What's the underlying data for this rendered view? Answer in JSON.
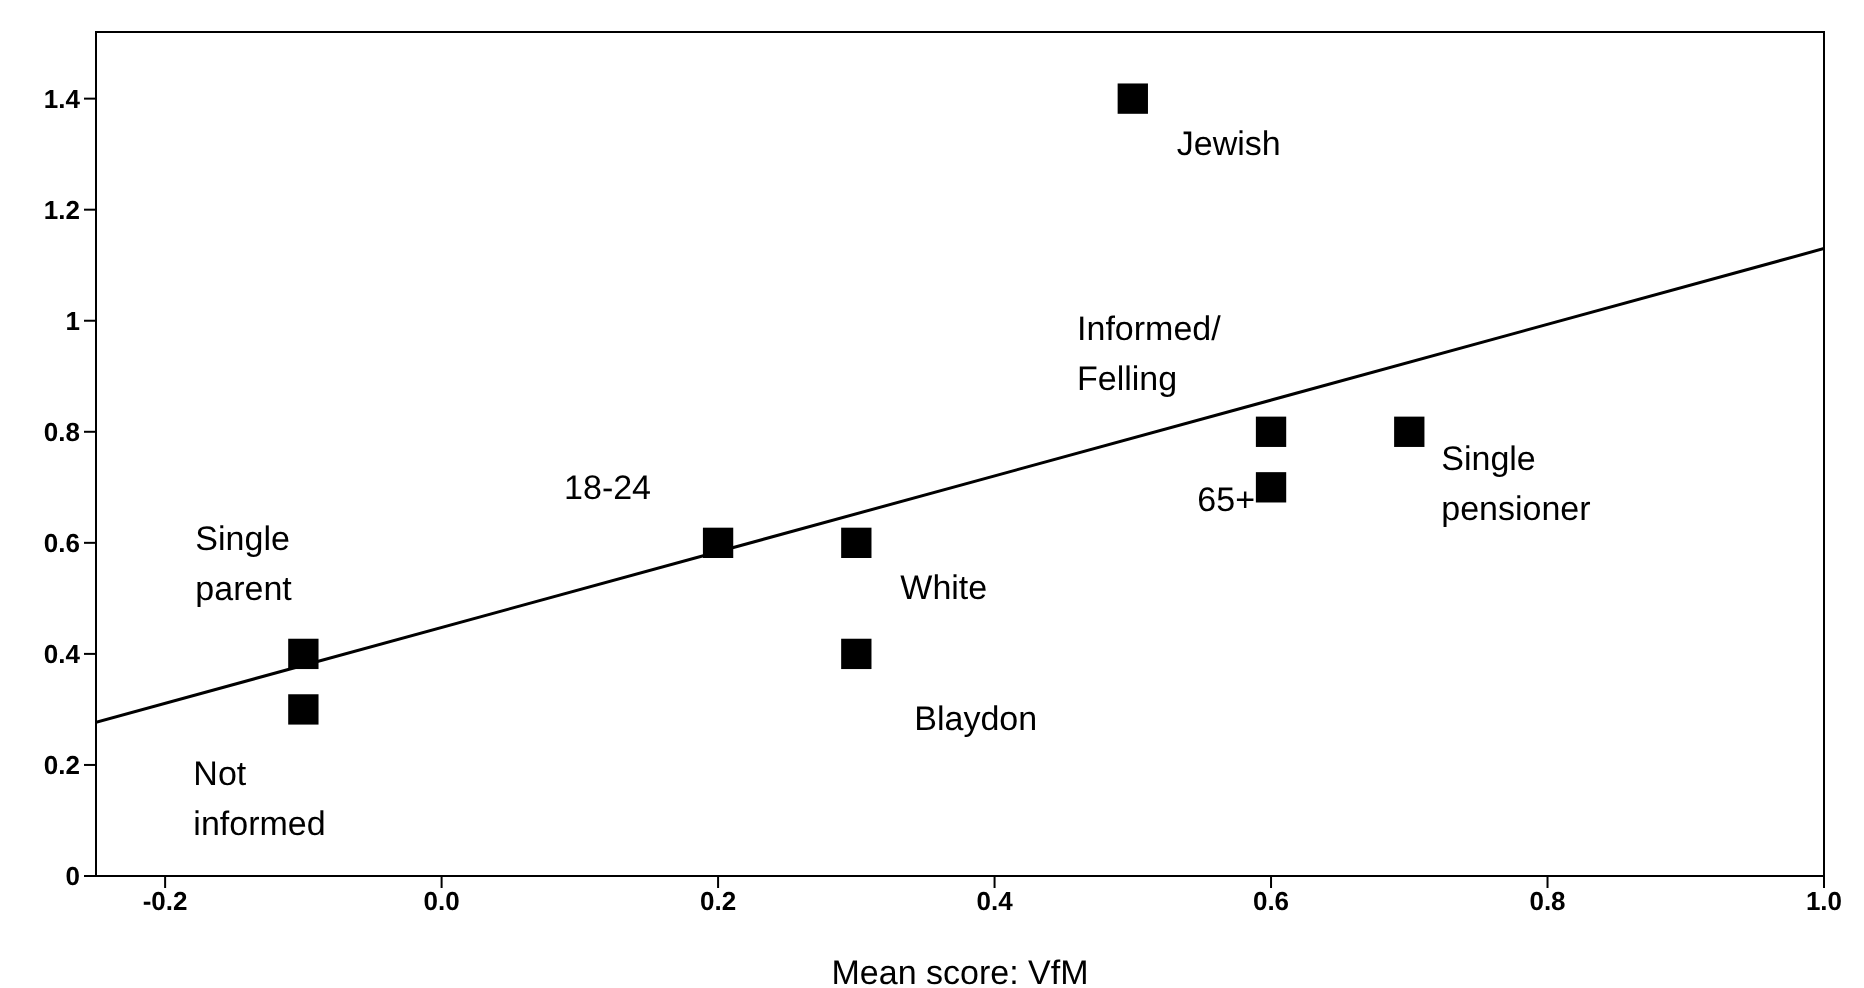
{
  "chart_data": {
    "type": "scatter",
    "xlabel": "Mean score: VfM",
    "xlim": [
      -0.25,
      1.0
    ],
    "xticks": [
      -0.2,
      {
        "value": 0,
        "label": "0.0"
      },
      0.2,
      0.4,
      0.6,
      0.8,
      {
        "value": 1,
        "label": "1.0"
      }
    ],
    "ylim": [
      0,
      1.52
    ],
    "yticks": [
      0,
      0.2,
      0.4,
      0.6,
      0.8,
      1,
      1.2,
      1.4
    ],
    "marker": "square",
    "series": [
      {
        "color": "#000000",
        "x": [
          -0.1,
          -0.1,
          0.2,
          0.3,
          0.3,
          0.5,
          0.6,
          0.6,
          0.7
        ],
        "values": [
          0.4,
          0.3,
          0.6,
          0.6,
          0.4,
          1.4,
          0.8,
          0.7,
          0.8
        ]
      },
      {
        "type": "line",
        "color": "#000000",
        "marker": "none",
        "line_style": "solid",
        "x": [
          -0.25,
          1.0
        ],
        "values": [
          0.277,
          1.13
        ]
      }
    ],
    "annotations": [
      {
        "text": "Single\nparent",
        "x": -0.1,
        "y": 0.4
      },
      {
        "text": "Not\ninformed",
        "x": -0.1,
        "y": 0.3
      },
      {
        "text": "18-24",
        "x": 0.2,
        "y": 0.6
      },
      {
        "text": "White",
        "x": 0.3,
        "y": 0.6
      },
      {
        "text": "Blaydon",
        "x": 0.3,
        "y": 0.4
      },
      {
        "text": "Jewish",
        "x": 0.5,
        "y": 1.4
      },
      {
        "text": "Informed/\nFelling",
        "x": 0.6,
        "y": 0.8
      },
      {
        "text": "65+",
        "x": 0.6,
        "y": 0.7
      },
      {
        "text": "Single\npensioner",
        "x": 0.7,
        "y": 0.8
      }
    ]
  }
}
